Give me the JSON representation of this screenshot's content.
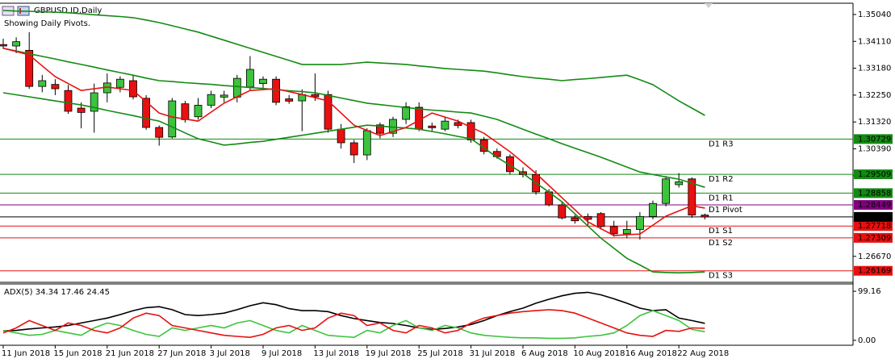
{
  "chart_data": [
    {
      "type": "candlestick",
      "title": "GBPUSD.ID,Daily",
      "subtitle": "Showing Daily Pivots.",
      "categories": [
        "11 Jun 2018",
        null,
        null,
        null,
        "15 Jun 2018",
        null,
        null,
        null,
        "21 Jun 2018",
        null,
        null,
        null,
        "27 Jun 2018",
        null,
        null,
        null,
        "3 Jul 2018",
        null,
        null,
        null,
        "9 Jul 2018",
        null,
        null,
        null,
        "13 Jul 2018",
        null,
        null,
        null,
        "19 Jul 2018",
        null,
        null,
        null,
        "25 Jul 2018",
        null,
        null,
        null,
        "31 Jul 2018",
        null,
        null,
        null,
        "6 Aug 2018",
        null,
        null,
        null,
        "10 Aug 2018",
        null,
        null,
        null,
        "16 Aug 2018",
        null,
        null,
        null,
        "22 Aug 2018",
        null,
        null
      ],
      "open": [
        1.34,
        1.3395,
        1.338,
        1.3255,
        1.3262,
        1.3241,
        1.318,
        1.3169,
        1.3233,
        1.3252,
        1.3275,
        1.3214,
        1.3113,
        1.308,
        1.3195,
        1.315,
        1.319,
        1.3218,
        1.3218,
        1.3253,
        1.3265,
        1.328,
        1.3212,
        1.3205,
        1.3227,
        1.3227,
        1.3107,
        1.306,
        1.3018,
        1.3122,
        1.3093,
        1.3141,
        1.3183,
        1.3118,
        1.3107,
        1.313,
        1.313,
        1.307,
        1.303,
        1.3012,
        1.296,
        1.295,
        1.289,
        1.2845,
        1.28,
        1.2805,
        1.2815,
        1.277,
        1.2745,
        1.276,
        1.2805,
        1.285,
        1.2915,
        1.2935,
        1.281
      ],
      "high": [
        1.342,
        1.3425,
        1.3443,
        1.3295,
        1.328,
        1.326,
        1.32,
        1.3265,
        1.33,
        1.329,
        1.3295,
        1.3225,
        1.312,
        1.3215,
        1.3205,
        1.3215,
        1.324,
        1.324,
        1.3295,
        1.336,
        1.329,
        1.329,
        1.3225,
        1.3245,
        1.33,
        1.324,
        1.3125,
        1.307,
        1.311,
        1.313,
        1.315,
        1.32,
        1.32,
        1.313,
        1.315,
        1.314,
        1.314,
        1.308,
        1.304,
        1.302,
        1.2975,
        1.2965,
        1.29,
        1.2855,
        1.281,
        1.2815,
        1.282,
        1.279,
        1.279,
        1.282,
        1.286,
        1.2945,
        1.2955,
        1.294,
        1.2815
      ],
      "low": [
        1.3385,
        1.337,
        1.3247,
        1.3235,
        1.3225,
        1.316,
        1.311,
        1.3095,
        1.32,
        1.3235,
        1.321,
        1.3105,
        1.305,
        1.3075,
        1.313,
        1.314,
        1.318,
        1.32,
        1.32,
        1.324,
        1.325,
        1.319,
        1.3195,
        1.31,
        1.3205,
        1.3095,
        1.304,
        1.299,
        1.3,
        1.3075,
        1.308,
        1.3125,
        1.31,
        1.31,
        1.31,
        1.311,
        1.306,
        1.302,
        1.3005,
        1.295,
        1.294,
        1.288,
        1.284,
        1.2795,
        1.278,
        1.277,
        1.276,
        1.2735,
        1.273,
        1.2725,
        1.2795,
        1.284,
        1.2905,
        1.28,
        1.2795
      ],
      "close": [
        1.3395,
        1.341,
        1.3255,
        1.3275,
        1.3247,
        1.3169,
        1.3165,
        1.3233,
        1.3267,
        1.328,
        1.3219,
        1.3113,
        1.3079,
        1.3205,
        1.314,
        1.319,
        1.3227,
        1.3225,
        1.3283,
        1.3314,
        1.328,
        1.32,
        1.3204,
        1.3227,
        1.3219,
        1.3107,
        1.306,
        1.3018,
        1.3102,
        1.3093,
        1.3141,
        1.3185,
        1.3107,
        1.3112,
        1.3135,
        1.312,
        1.307,
        1.303,
        1.3012,
        1.296,
        1.295,
        1.289,
        1.2845,
        1.28,
        1.279,
        1.2795,
        1.277,
        1.2745,
        1.276,
        1.2805,
        1.285,
        1.2935,
        1.2925,
        1.281,
        1.28035
      ],
      "up_color": "#3cc43c",
      "down_color": "#e81010",
      "ylim": [
        1.2577,
        1.3543
      ],
      "yticks": [
        {
          "value": 1.3504,
          "label": "1.35040"
        },
        {
          "value": 1.3411,
          "label": "1.34110"
        },
        {
          "value": 1.3318,
          "label": "1.33180"
        },
        {
          "value": 1.3225,
          "label": "1.32250"
        },
        {
          "value": 1.3132,
          "label": "1.31320"
        },
        {
          "value": 1.3039,
          "label": "1.30390"
        },
        {
          "value": 1.2946,
          "label": "1.29460"
        },
        {
          "value": 1.2667,
          "label": "1.26670"
        }
      ],
      "overlays": [
        {
          "color": "#138a13",
          "values": [
            1.3518,
            1.3516,
            1.3515,
            1.3513,
            1.3512,
            1.351,
            1.3507,
            1.3503,
            1.35,
            1.3497,
            1.3493,
            1.3485,
            1.3476,
            1.3465,
            1.3454,
            1.3443,
            1.3429,
            1.3415,
            1.3401,
            1.3387,
            1.3373,
            1.3359,
            1.3345,
            1.3331,
            1.3331,
            1.3331,
            1.3331,
            1.3335,
            1.3339,
            1.3336,
            1.3334,
            1.3331,
            1.3326,
            1.3322,
            1.3317,
            1.3314,
            1.3311,
            1.3308,
            1.3302,
            1.3295,
            1.3289,
            1.3284,
            1.328,
            1.3275,
            1.3279,
            1.3282,
            1.3286,
            1.329,
            1.3294,
            1.3278,
            1.3261,
            1.3233,
            1.3205,
            1.318,
            1.3155
          ]
        },
        {
          "color": "#138a13",
          "values": [
            1.3387,
            1.3378,
            1.3368,
            1.3359,
            1.335,
            1.334,
            1.3331,
            1.3322,
            1.3312,
            1.3303,
            1.3294,
            1.3284,
            1.3275,
            1.3272,
            1.3268,
            1.3265,
            1.3262,
            1.3258,
            1.3255,
            1.3251,
            1.3248,
            1.3244,
            1.324,
            1.3237,
            1.3233,
            1.3224,
            1.3215,
            1.3206,
            1.3197,
            1.3192,
            1.3187,
            1.3182,
            1.3177,
            1.3173,
            1.317,
            1.3166,
            1.3163,
            1.3152,
            1.3141,
            1.3124,
            1.3107,
            1.309,
            1.3074,
            1.3057,
            1.3041,
            1.3026,
            1.301,
            1.2993,
            1.2976,
            1.2959,
            1.295,
            1.2942,
            1.2934,
            1.292,
            1.2906
          ]
        },
        {
          "color": "#138a13",
          "values": [
            1.3233,
            1.3226,
            1.3219,
            1.3212,
            1.3205,
            1.3198,
            1.3191,
            1.3182,
            1.3172,
            1.3163,
            1.3154,
            1.3144,
            1.3135,
            1.3115,
            1.3094,
            1.3074,
            1.3063,
            1.3052,
            1.3056,
            1.3061,
            1.3065,
            1.3072,
            1.3079,
            1.3086,
            1.3093,
            1.31,
            1.3107,
            1.3114,
            1.3121,
            1.3118,
            1.3114,
            1.3111,
            1.3107,
            1.3099,
            1.3091,
            1.3082,
            1.3074,
            1.3042,
            1.301,
            1.2982,
            1.2954,
            1.2921,
            1.2889,
            1.2856,
            1.2814,
            1.2772,
            1.273,
            1.2695,
            1.266,
            1.2637,
            1.2613,
            1.2611,
            1.261,
            1.2611,
            1.2613
          ]
        },
        {
          "color": "#e81010",
          "values": [
            1.3387,
            1.3376,
            1.3364,
            1.3326,
            1.3289,
            1.3265,
            1.3241,
            1.3247,
            1.3253,
            1.3247,
            1.3241,
            1.3202,
            1.3163,
            1.3149,
            1.3142,
            1.3135,
            1.3166,
            1.3197,
            1.3219,
            1.3241,
            1.3244,
            1.3247,
            1.3237,
            1.3227,
            1.3216,
            1.3205,
            1.3163,
            1.3121,
            1.3103,
            1.3085,
            1.3099,
            1.3113,
            1.3138,
            1.3163,
            1.3149,
            1.3135,
            1.3114,
            1.3093,
            1.3061,
            1.3029,
            1.2992,
            1.2954,
            1.2912,
            1.287,
            1.2828,
            1.2786,
            1.2763,
            1.2739,
            1.2742,
            1.2744,
            1.2775,
            1.2806,
            1.2824,
            1.2842,
            1.2834
          ]
        }
      ],
      "levels": [
        {
          "label": "D1 R3",
          "value": 1.30729,
          "color": "#138a13"
        },
        {
          "label": "D1 R2",
          "value": 1.29509,
          "color": "#138a13"
        },
        {
          "label": "D1 R1",
          "value": 1.28858,
          "color": "#138a13"
        },
        {
          "label": "D1 Pivot",
          "value": 1.28449,
          "color": "#800080"
        },
        {
          "label": "D1 S1",
          "value": 1.27718,
          "color": "#e81010"
        },
        {
          "label": "D1 S2",
          "value": 1.27309,
          "color": "#e81010"
        },
        {
          "label": "D1 S3",
          "value": 1.26169,
          "color": "#e81010"
        }
      ],
      "last_price": 1.28035
    },
    {
      "type": "line",
      "title": "ADX(5) 34.34 17.46 24.45",
      "series": [
        {
          "color": "#000000",
          "values": [
            19,
            20,
            23,
            25,
            27,
            30,
            35,
            40,
            45,
            52,
            60,
            66,
            68,
            62,
            52,
            50,
            52,
            55,
            62,
            70,
            76,
            72,
            64,
            60,
            60,
            58,
            50,
            44,
            40,
            36,
            34,
            30,
            25,
            22,
            24,
            27,
            32,
            40,
            50,
            58,
            65,
            75,
            83,
            90,
            95,
            97,
            92,
            84,
            75,
            65,
            60,
            62,
            45,
            40,
            34.34
          ]
        },
        {
          "color": "#3cc43c",
          "values": [
            20,
            15,
            10,
            12,
            20,
            15,
            10,
            25,
            35,
            30,
            20,
            12,
            8,
            25,
            20,
            25,
            30,
            25,
            35,
            40,
            30,
            20,
            15,
            30,
            20,
            10,
            8,
            6,
            20,
            15,
            30,
            40,
            25,
            20,
            30,
            25,
            15,
            10,
            8,
            6,
            5,
            5,
            4,
            4,
            5,
            8,
            10,
            15,
            30,
            50,
            60,
            50,
            40,
            22,
            17.46
          ]
        },
        {
          "color": "#e81010",
          "values": [
            15,
            25,
            40,
            30,
            20,
            35,
            30,
            20,
            15,
            25,
            45,
            55,
            50,
            30,
            25,
            20,
            15,
            10,
            8,
            6,
            12,
            25,
            30,
            20,
            25,
            45,
            55,
            50,
            30,
            35,
            20,
            15,
            30,
            25,
            15,
            20,
            35,
            45,
            50,
            55,
            58,
            60,
            62,
            60,
            55,
            45,
            35,
            25,
            15,
            10,
            8,
            20,
            18,
            25,
            24.45
          ]
        }
      ],
      "ylim": [
        -10,
        114
      ],
      "yticks": [
        99.16,
        {
          "value": 0,
          "label": "0.00"
        }
      ]
    }
  ]
}
